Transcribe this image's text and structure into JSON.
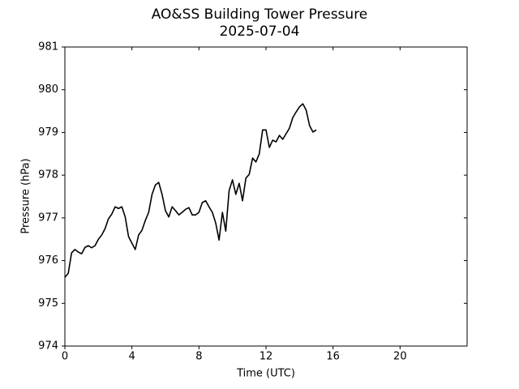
{
  "chart_data": {
    "type": "line",
    "title": "AO&SS Building Tower Pressure",
    "subtitle": "2025-07-04",
    "x_label": "Time (UTC)",
    "y_label": "Pressure (hPa)",
    "xlim": [
      0,
      24
    ],
    "xticks": [
      0,
      4,
      8,
      12,
      16,
      20
    ],
    "ylim": [
      974,
      981
    ],
    "yticks": [
      974,
      975,
      976,
      977,
      978,
      979,
      980,
      981
    ],
    "grid": false,
    "series": [
      {
        "name": "Pressure",
        "color": "#000000",
        "x": [
          0,
          0.2,
          0.4,
          0.6,
          0.8,
          1.0,
          1.2,
          1.4,
          1.6,
          1.8,
          2.0,
          2.2,
          2.4,
          2.6,
          2.8,
          3.0,
          3.2,
          3.4,
          3.6,
          3.8,
          4.0,
          4.2,
          4.4,
          4.6,
          4.8,
          5.0,
          5.2,
          5.4,
          5.6,
          5.8,
          6.0,
          6.2,
          6.4,
          6.6,
          6.8,
          7.0,
          7.2,
          7.4,
          7.6,
          7.8,
          8.0,
          8.2,
          8.4,
          8.6,
          8.8,
          9.0,
          9.2,
          9.4,
          9.6,
          9.8,
          10.0,
          10.2,
          10.4,
          10.6,
          10.8,
          11.0,
          11.2,
          11.4,
          11.6,
          11.8,
          12.0,
          12.2,
          12.4,
          12.6,
          12.8,
          13.0,
          13.2,
          13.4,
          13.6,
          13.8,
          14.0,
          14.2,
          14.4,
          14.6,
          14.8,
          15.0
        ],
        "values": [
          975.61,
          975.7,
          976.18,
          976.26,
          976.2,
          976.16,
          976.31,
          976.35,
          976.3,
          976.35,
          976.5,
          976.6,
          976.75,
          976.98,
          977.09,
          977.26,
          977.22,
          977.26,
          977.02,
          976.56,
          976.41,
          976.26,
          976.6,
          976.71,
          976.94,
          977.13,
          977.55,
          977.77,
          977.83,
          977.55,
          977.17,
          977.02,
          977.26,
          977.17,
          977.07,
          977.13,
          977.2,
          977.24,
          977.07,
          977.07,
          977.13,
          977.36,
          977.4,
          977.26,
          977.13,
          976.88,
          976.48,
          977.13,
          976.69,
          977.64,
          977.89,
          977.55,
          977.81,
          977.4,
          977.93,
          978.02,
          978.4,
          978.31,
          978.5,
          979.06,
          979.06,
          978.65,
          978.82,
          978.78,
          978.93,
          978.84,
          978.97,
          979.1,
          979.35,
          979.48,
          979.6,
          979.67,
          979.52,
          979.16,
          979.01,
          979.06
        ]
      }
    ]
  }
}
